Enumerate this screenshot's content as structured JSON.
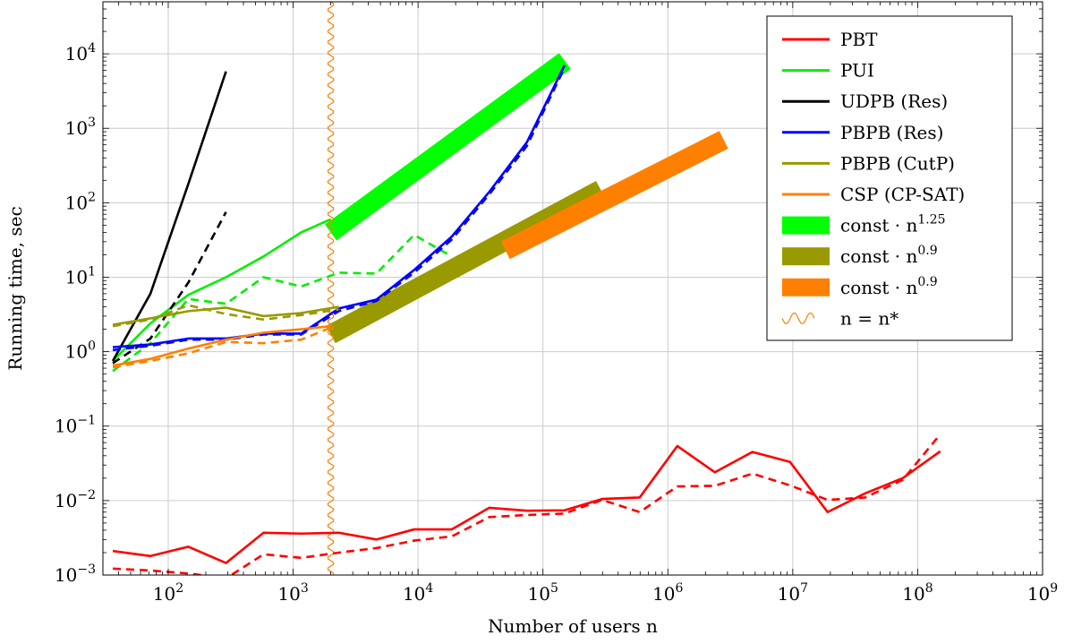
{
  "chart_data": {
    "type": "line",
    "xlabel": "Number of users n",
    "ylabel": "Running time, sec",
    "xscale": "log",
    "yscale": "log",
    "xlim": [
      30,
      1000000000
    ],
    "ylim": [
      0.001,
      50000
    ],
    "grid": true,
    "legend_position": "top-right",
    "x_ticks": [
      {
        "value": 100,
        "base": "10",
        "exp": "2"
      },
      {
        "value": 1000,
        "base": "10",
        "exp": "3"
      },
      {
        "value": 10000,
        "base": "10",
        "exp": "4"
      },
      {
        "value": 100000,
        "base": "10",
        "exp": "5"
      },
      {
        "value": 1000000,
        "base": "10",
        "exp": "6"
      },
      {
        "value": 10000000,
        "base": "10",
        "exp": "7"
      },
      {
        "value": 100000000,
        "base": "10",
        "exp": "8"
      },
      {
        "value": 1000000000,
        "base": "10",
        "exp": "9"
      }
    ],
    "y_ticks": [
      {
        "value": 0.001,
        "base": "10",
        "exp": "−3"
      },
      {
        "value": 0.01,
        "base": "10",
        "exp": "−2"
      },
      {
        "value": 0.1,
        "base": "10",
        "exp": "−1"
      },
      {
        "value": 1,
        "base": "10",
        "exp": "0"
      },
      {
        "value": 10,
        "base": "10",
        "exp": "1"
      },
      {
        "value": 100,
        "base": "10",
        "exp": "2"
      },
      {
        "value": 1000,
        "base": "10",
        "exp": "3"
      },
      {
        "value": 10000,
        "base": "10",
        "exp": "4"
      }
    ],
    "series": [
      {
        "name": "PBT",
        "color": "#ff0000",
        "style": "solid",
        "x": [
          36,
          72,
          145,
          290,
          580,
          1160,
          2320,
          4640,
          9300,
          18600,
          37200,
          74400,
          148800,
          297600,
          595000,
          1190000,
          2380000,
          4760000,
          9520000,
          19000000,
          38000000,
          76000000,
          152000000
        ],
        "y": [
          0.0021,
          0.0018,
          0.0024,
          0.00145,
          0.0037,
          0.0036,
          0.0037,
          0.003,
          0.0041,
          0.0041,
          0.008,
          0.0073,
          0.0074,
          0.0105,
          0.011,
          0.054,
          0.024,
          0.045,
          0.033,
          0.007,
          0.0125,
          0.02,
          0.046
        ]
      },
      {
        "name": "",
        "color": "#ff0000",
        "style": "dashed",
        "x": [
          36,
          72,
          145,
          290,
          580,
          1160,
          2320,
          4640,
          9300,
          18600,
          37200,
          74400,
          148800,
          297600,
          595000,
          1190000,
          2380000,
          4760000,
          9520000,
          19000000,
          38000000,
          76000000,
          152000000
        ],
        "y": [
          0.00122,
          0.00115,
          0.00105,
          0.0009,
          0.0019,
          0.0017,
          0.002,
          0.0023,
          0.0029,
          0.0033,
          0.006,
          0.0064,
          0.0067,
          0.0102,
          0.007,
          0.0155,
          0.0158,
          0.023,
          0.016,
          0.0102,
          0.011,
          0.019,
          0.078
        ]
      },
      {
        "name": "PUI",
        "color": "#00ee00",
        "style": "solid",
        "x": [
          36,
          72,
          145,
          290,
          580,
          1160,
          2000
        ],
        "y": [
          0.75,
          2.4,
          5.8,
          10,
          19,
          40,
          60
        ]
      },
      {
        "name": "",
        "color": "#00ee00",
        "style": "dashed",
        "x": [
          36,
          72,
          145,
          290,
          580,
          1160,
          2320,
          4640,
          9300,
          18600
        ],
        "y": [
          0.55,
          1.3,
          5.1,
          4.4,
          10,
          7.5,
          11.5,
          11.2,
          37,
          19
        ]
      },
      {
        "name": "UDPB (Res)",
        "color": "#000000",
        "style": "solid",
        "x": [
          36,
          72,
          145,
          290
        ],
        "y": [
          0.75,
          6.0,
          180,
          5800
        ]
      },
      {
        "name": "",
        "color": "#000000",
        "style": "dashed",
        "x": [
          36,
          72,
          145,
          290
        ],
        "y": [
          0.7,
          1.5,
          8.5,
          75
        ]
      },
      {
        "name": "PBPB (Res)",
        "color": "#0000ff",
        "style": "solid",
        "x": [
          36,
          72,
          145,
          290,
          580,
          1160,
          2320,
          4640,
          9300,
          18600,
          37200,
          74400,
          148800
        ],
        "y": [
          1.15,
          1.25,
          1.5,
          1.5,
          1.75,
          1.75,
          3.8,
          5.0,
          12.5,
          35,
          140,
          650,
          7000
        ]
      },
      {
        "name": "",
        "color": "#0000ff",
        "style": "dashed",
        "x": [
          36,
          72,
          145,
          290,
          580,
          1160,
          2320,
          4640,
          9300,
          18600,
          37200,
          74400,
          148800
        ],
        "y": [
          1.05,
          1.2,
          1.45,
          1.45,
          1.7,
          1.7,
          3.5,
          4.8,
          11.5,
          32,
          130,
          580,
          6500
        ]
      },
      {
        "name": "PBPB (CutP)",
        "color": "#999900",
        "style": "solid",
        "x": [
          36,
          72,
          145,
          290,
          580,
          1160,
          2320
        ],
        "y": [
          2.3,
          2.8,
          3.5,
          3.9,
          3.0,
          3.3,
          4.0
        ]
      },
      {
        "name": "",
        "color": "#999900",
        "style": "dashed",
        "x": [
          36,
          72,
          145,
          290,
          580,
          1160,
          2320
        ],
        "y": [
          2.2,
          2.7,
          4.2,
          3.2,
          2.7,
          3.1,
          3.7
        ]
      },
      {
        "name": "CSP (CP-SAT)",
        "color": "#ff8000",
        "style": "solid",
        "x": [
          36,
          72,
          145,
          290,
          580,
          1160,
          2000
        ],
        "y": [
          0.65,
          0.8,
          1.1,
          1.45,
          1.8,
          2.0,
          2.2
        ]
      },
      {
        "name": "",
        "color": "#ff8000",
        "style": "dashed",
        "x": [
          36,
          72,
          145,
          290,
          580,
          1160,
          2000
        ],
        "y": [
          0.62,
          0.75,
          0.95,
          1.35,
          1.3,
          1.45,
          2.1
        ]
      }
    ],
    "trend_bands": [
      {
        "label": "const · n",
        "exp": "1.25",
        "color": "#00ff00",
        "x": [
          2000,
          150000
        ],
        "y": [
          40,
          8000
        ]
      },
      {
        "label": "const · n",
        "exp": "0.9",
        "color": "#999900",
        "x": [
          2000,
          290000
        ],
        "y": [
          1.7,
          150
        ]
      },
      {
        "label": "const · n",
        "exp": "0.9",
        "color": "#ff8000",
        "x": [
          50000,
          2800000
        ],
        "y": [
          23,
          700
        ]
      }
    ],
    "threshold": {
      "label": "n = n*",
      "color": "#ff8000",
      "x": 2000
    },
    "legend": [
      {
        "label": "PBT",
        "exp": "",
        "color": "#ff0000",
        "kind": "line"
      },
      {
        "label": "PUI",
        "exp": "",
        "color": "#00ee00",
        "kind": "line"
      },
      {
        "label": "UDPB (Res)",
        "exp": "",
        "color": "#000000",
        "kind": "line"
      },
      {
        "label": "PBPB (Res)",
        "exp": "",
        "color": "#0000ff",
        "kind": "line"
      },
      {
        "label": "PBPB (CutP)",
        "exp": "",
        "color": "#999900",
        "kind": "line"
      },
      {
        "label": "CSP (CP-SAT)",
        "exp": "",
        "color": "#ff8000",
        "kind": "line"
      },
      {
        "label": "const · n",
        "exp": "1.25",
        "color": "#00ff00",
        "kind": "band"
      },
      {
        "label": "const · n",
        "exp": "0.9",
        "color": "#999900",
        "kind": "band"
      },
      {
        "label": "const · n",
        "exp": "0.9",
        "color": "#ff8000",
        "kind": "band"
      },
      {
        "label": "n = n*",
        "exp": "",
        "color": "#ff8000",
        "kind": "wave"
      }
    ]
  }
}
